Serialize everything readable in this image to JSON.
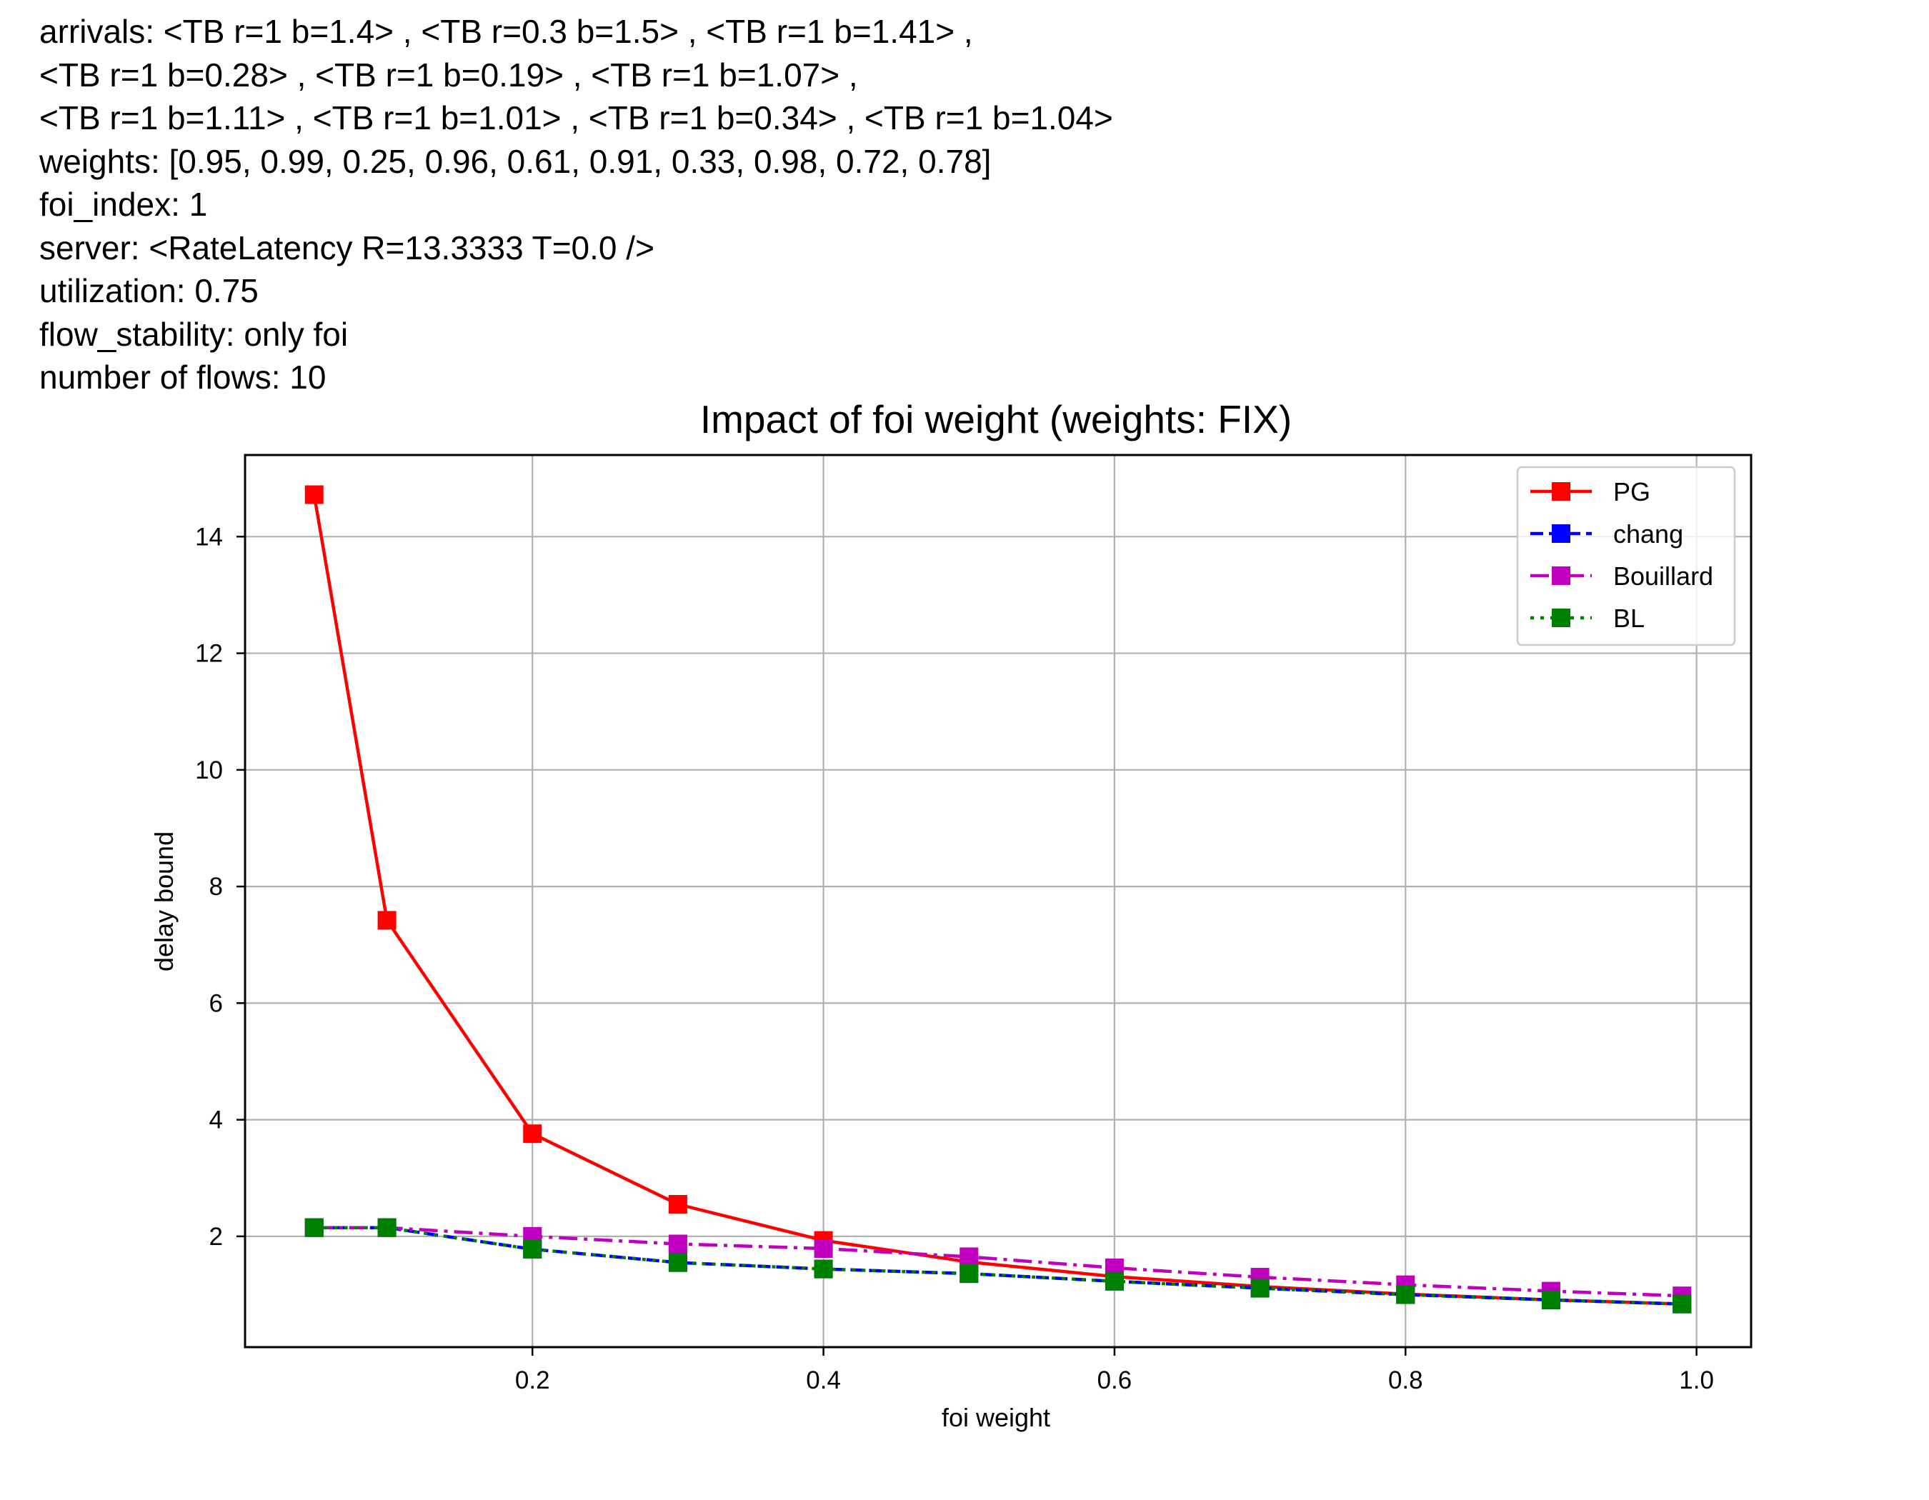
{
  "header": {
    "lines": [
      "arrivals: <TB r=1 b=1.4> , <TB r=0.3 b=1.5> , <TB r=1 b=1.41> ,",
      "<TB r=1 b=0.28> , <TB r=1 b=0.19> , <TB r=1 b=1.07> ,",
      "<TB r=1 b=1.11> , <TB r=1 b=1.01> , <TB r=1 b=0.34> , <TB r=1 b=1.04>",
      "weights: [0.95, 0.99, 0.25, 0.96, 0.61, 0.91, 0.33, 0.98, 0.72, 0.78]",
      "foi_index: 1",
      "server: <RateLatency R=13.3333 T=0.0 />",
      "utilization: 0.75",
      "flow_stability: only foi",
      "number of flows: 10"
    ]
  },
  "chart_data": {
    "type": "line",
    "title": "Impact of foi weight (weights: FIX)",
    "xlabel": "foi weight",
    "ylabel": "delay bound",
    "xlim": [
      0.0025,
      1.0375
    ],
    "ylim": [
      0.1,
      15.4
    ],
    "xticks": [
      0.2,
      0.4,
      0.6,
      0.8,
      1.0
    ],
    "xtick_labels": [
      "0.2",
      "0.4",
      "0.6",
      "0.8",
      "1.0"
    ],
    "yticks": [
      2,
      4,
      6,
      8,
      10,
      12,
      14
    ],
    "ytick_labels": [
      "2",
      "4",
      "6",
      "8",
      "10",
      "12",
      "14"
    ],
    "grid": true,
    "legend_position": "top-right",
    "x": [
      0.05,
      0.1,
      0.2,
      0.3,
      0.4,
      0.5,
      0.6,
      0.7,
      0.8,
      0.9,
      0.99
    ],
    "series": [
      {
        "name": "PG",
        "color": "#ff0000",
        "line_style": "solid",
        "marker": "square",
        "values": [
          14.72,
          7.42,
          3.76,
          2.55,
          1.93,
          1.56,
          1.31,
          1.14,
          1.01,
          0.91,
          0.84
        ]
      },
      {
        "name": "chang",
        "color": "#0000ff",
        "line_style": "dashed",
        "marker": "square",
        "values": [
          2.15,
          2.15,
          1.78,
          1.55,
          1.44,
          1.36,
          1.23,
          1.11,
          1.0,
          0.91,
          0.84
        ]
      },
      {
        "name": "Bouillard",
        "color": "#bf00bf",
        "line_style": "dashdot",
        "marker": "square",
        "values": [
          2.15,
          2.15,
          2.0,
          1.87,
          1.79,
          1.65,
          1.46,
          1.3,
          1.17,
          1.06,
          0.98
        ]
      },
      {
        "name": "BL",
        "color": "#008000",
        "line_style": "dotted",
        "marker": "square",
        "values": [
          2.15,
          2.15,
          1.78,
          1.55,
          1.44,
          1.36,
          1.23,
          1.11,
          1.0,
          0.91,
          0.84
        ]
      }
    ]
  }
}
